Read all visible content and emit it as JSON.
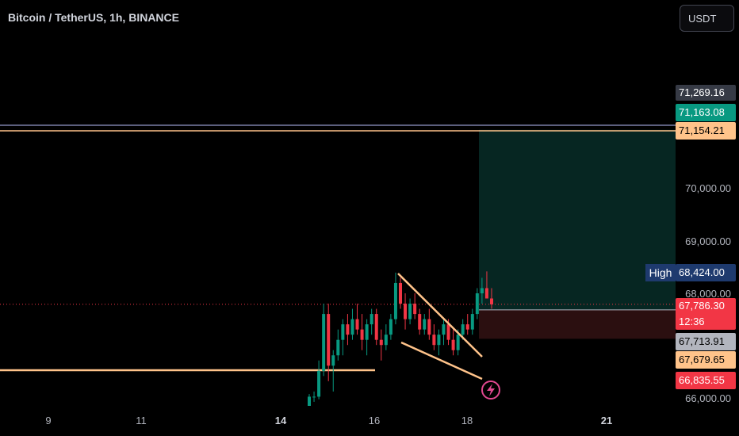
{
  "chart_title": "Bitcoin / TetherUS, 1h, BINANCE",
  "currency_button": "USDT",
  "chart_data": {
    "type": "candlestick",
    "title": "Bitcoin / TetherUS, 1h, BINANCE",
    "x_ticks": [
      "9",
      "11",
      "14",
      "16",
      "18",
      "21"
    ],
    "y_ticks": [
      "70,000.00",
      "69,000.00",
      "68,000.00",
      "66,000.00"
    ],
    "price_labels": [
      {
        "value": "71,269.16",
        "bg": "#363a45",
        "fg": "#ffffff"
      },
      {
        "value": "71,163.08",
        "bg": "#089981",
        "fg": "#ffffff"
      },
      {
        "value": "71,154.21",
        "bg": "#ffc38a",
        "fg": "#000000"
      },
      {
        "value": "68,424.00",
        "bg": "#1e3a6e",
        "fg": "#ffffff"
      },
      {
        "value": "67,786.30",
        "sub": "12:36",
        "bg": "#f23645",
        "fg": "#ffffff"
      },
      {
        "value": "67,713.91",
        "bg": "#b2b5be",
        "fg": "#000000"
      },
      {
        "value": "67,679.65",
        "bg": "#ffc38a",
        "fg": "#000000"
      },
      {
        "value": "66,835.55",
        "bg": "#f23645",
        "fg": "#ffffff"
      }
    ],
    "high_label": "High",
    "levels": {
      "upper_line": 71154.21,
      "support_line": 67050
    },
    "position": {
      "entry": 67679.65,
      "target": 71163.08,
      "stop": 67120
    },
    "candles_ohlc": [
      [
        65800,
        66050,
        65750,
        66000
      ],
      [
        66000,
        66100,
        65900,
        66000
      ],
      [
        66000,
        66700,
        65950,
        66500
      ],
      [
        66500,
        67800,
        66400,
        67600
      ],
      [
        67600,
        67800,
        66300,
        66600
      ],
      [
        66600,
        66900,
        66100,
        66800
      ],
      [
        66800,
        67300,
        66700,
        67100
      ],
      [
        67100,
        67500,
        66800,
        67400
      ],
      [
        67400,
        67600,
        67000,
        67200
      ],
      [
        67200,
        67700,
        67100,
        67500
      ],
      [
        67500,
        67800,
        67200,
        67300
      ],
      [
        67300,
        67600,
        66900,
        67100
      ],
      [
        67100,
        67500,
        66800,
        67400
      ],
      [
        67400,
        67700,
        67200,
        67600
      ],
      [
        67600,
        67700,
        67000,
        67100
      ],
      [
        67100,
        67300,
        66700,
        67000
      ],
      [
        67000,
        67400,
        66900,
        67200
      ],
      [
        67200,
        67600,
        67100,
        67500
      ],
      [
        67500,
        68400,
        67400,
        68200
      ],
      [
        68200,
        68300,
        67700,
        67800
      ],
      [
        67800,
        68000,
        67300,
        67500
      ],
      [
        67500,
        67900,
        67400,
        67800
      ],
      [
        67800,
        68000,
        67500,
        67600
      ],
      [
        67600,
        67700,
        67200,
        67300
      ],
      [
        67300,
        67600,
        67200,
        67500
      ],
      [
        67500,
        67700,
        67100,
        67200
      ],
      [
        67200,
        67400,
        66900,
        67000
      ],
      [
        67000,
        67300,
        66800,
        67200
      ],
      [
        67200,
        67500,
        67000,
        67400
      ],
      [
        67400,
        67500,
        67000,
        67100
      ],
      [
        67100,
        67300,
        66800,
        66900
      ],
      [
        66900,
        67300,
        66800,
        67200
      ],
      [
        67200,
        67500,
        67100,
        67400
      ],
      [
        67400,
        67600,
        67200,
        67300
      ],
      [
        67300,
        67700,
        67200,
        67600
      ],
      [
        67600,
        68100,
        67500,
        68000
      ],
      [
        68000,
        68300,
        67800,
        68100
      ],
      [
        68100,
        68424,
        67900,
        67900
      ],
      [
        67900,
        68100,
        67700,
        67786.3
      ]
    ]
  }
}
